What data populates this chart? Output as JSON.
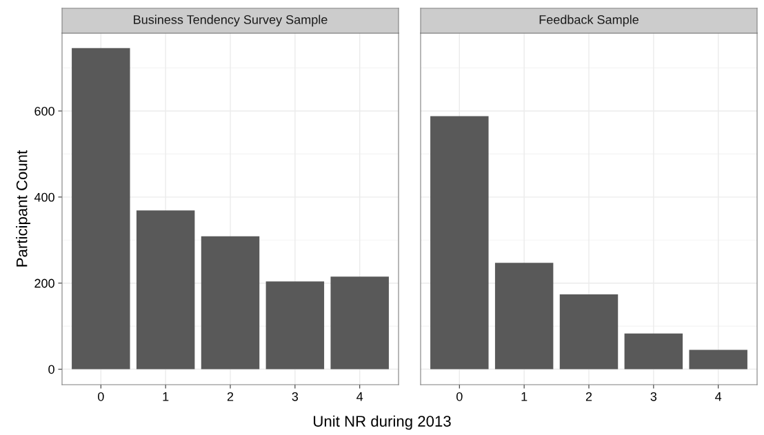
{
  "chart_data": [
    {
      "type": "bar",
      "title": "Business Tendency Survey Sample",
      "xlabel": "Unit NR during 2013",
      "ylabel": "Participant Count",
      "categories": [
        "0",
        "1",
        "2",
        "3",
        "4"
      ],
      "values": [
        746,
        369,
        309,
        204,
        215
      ],
      "color": "#595959",
      "ylim": [
        -36,
        781
      ],
      "yticks": [
        0,
        200,
        400,
        600
      ],
      "grid": true
    },
    {
      "type": "bar",
      "title": "Feedback Sample",
      "categories": [
        "0",
        "1",
        "2",
        "3",
        "4"
      ],
      "values": [
        588,
        247,
        174,
        83,
        45
      ],
      "color": "#595959",
      "ylim": [
        -36,
        781
      ],
      "yticks": [
        0,
        200,
        400,
        600
      ],
      "grid": true,
      "tick_labels": "x"
    }
  ]
}
